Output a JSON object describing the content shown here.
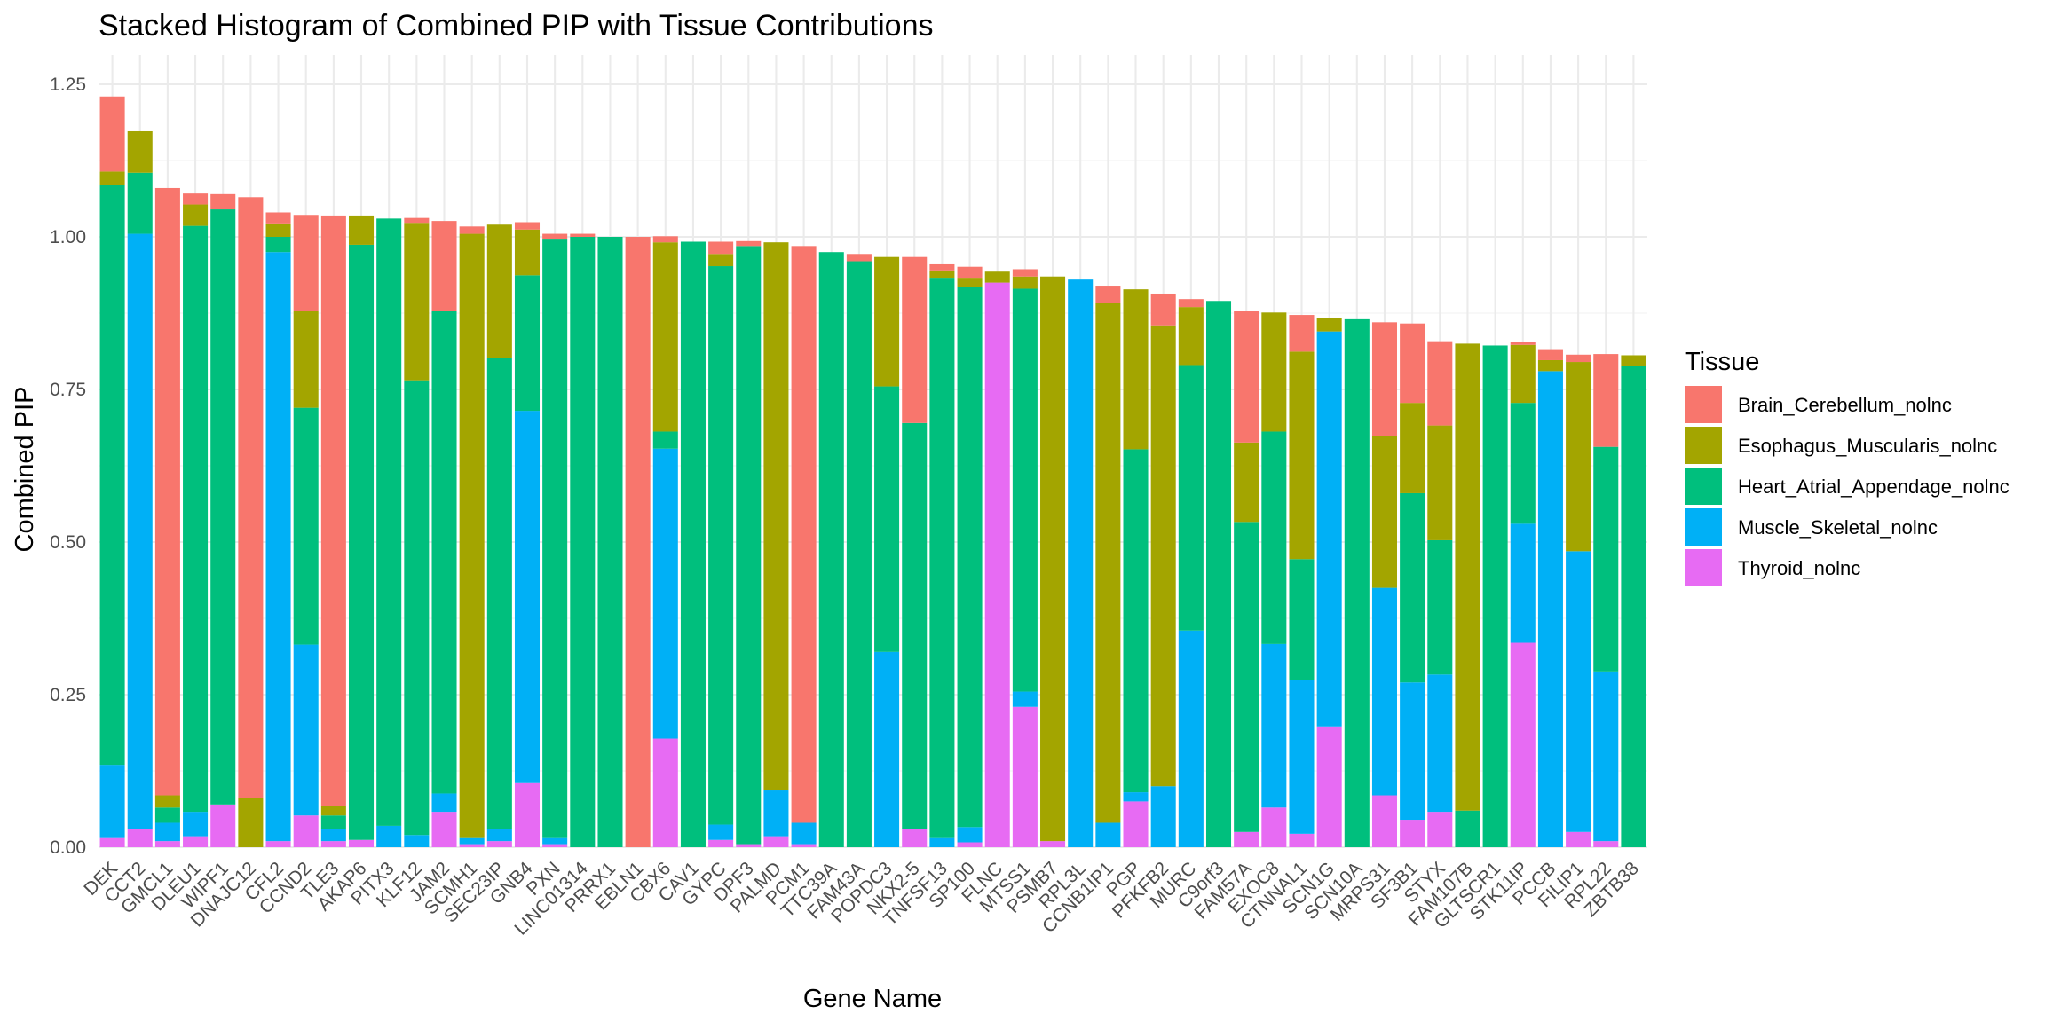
{
  "chart_data": {
    "type": "bar",
    "stacked": true,
    "title": "Stacked Histogram of Combined PIP with Tissue Contributions",
    "xlabel": "Gene Name",
    "ylabel": "Combined PIP",
    "ylim": [
      0,
      1.25
    ],
    "yticks": [
      "0.00",
      "0.25",
      "0.50",
      "0.75",
      "1.00",
      "1.25"
    ],
    "ytick_values": [
      0,
      0.25,
      0.5,
      0.75,
      1.0,
      1.25
    ],
    "legend_title": "Tissue",
    "legend_position": "right",
    "categories": [
      "DEK",
      "CCT2",
      "GMCL1",
      "DLEU1",
      "WIPF1",
      "DNAJC12",
      "CFL2",
      "CCND2",
      "TLE3",
      "AKAP6",
      "PITX3",
      "KLF12",
      "JAM2",
      "SCMH1",
      "SEC23IP",
      "GNB4",
      "PXN",
      "LINC01314",
      "PRRX1",
      "EBLN1",
      "CBX6",
      "CAV1",
      "GYPC",
      "DPF3",
      "PALMD",
      "PCM1",
      "TTC39A",
      "FAM43A",
      "POPDC3",
      "NKX2-5",
      "TNFSF13",
      "SP100",
      "FLNC",
      "MTSS1",
      "PSMB7",
      "RPL3L",
      "CCNB1IP1",
      "PGP",
      "PFKFB2",
      "MURC",
      "C9orf3",
      "FAM57A",
      "EXOC8",
      "CTNNAL1",
      "SCN1G",
      "SCN10A",
      "MRPS31",
      "SF3B1",
      "STYX",
      "FAM107B",
      "GLTSCR1",
      "STK11IP",
      "PCCB",
      "FILIP1",
      "RPL22",
      "ZBTB38"
    ],
    "series": [
      {
        "name": "Thyroid_nolnc",
        "color": "#E76BF3",
        "values": [
          0.015,
          0.03,
          0.01,
          0.018,
          0.07,
          0,
          0.01,
          0.052,
          0.01,
          0.012,
          0,
          0,
          0.058,
          0.005,
          0.01,
          0.105,
          0.005,
          0,
          0,
          0,
          0.178,
          0,
          0.012,
          0.005,
          0.018,
          0.005,
          0,
          0,
          0,
          0.03,
          0,
          0.008,
          0.925,
          0.23,
          0.01,
          0,
          0,
          0.075,
          0,
          0,
          0,
          0.025,
          0.065,
          0.022,
          0.198,
          0,
          0.085,
          0.045,
          0.058,
          0,
          0,
          0.335,
          0,
          0.025,
          0.01,
          0
        ]
      },
      {
        "name": "Muscle_Skeletal_nolnc",
        "color": "#00B0F6",
        "values": [
          0.12,
          0.975,
          0.03,
          0.04,
          0,
          0,
          0.965,
          0.28,
          0.02,
          0,
          0.035,
          0.02,
          0.03,
          0.01,
          0.02,
          0.61,
          0.01,
          0,
          0,
          0,
          0.475,
          0,
          0.025,
          0,
          0.075,
          0.035,
          0,
          0,
          0.32,
          0,
          0.015,
          0.025,
          0,
          0.025,
          0,
          0.93,
          0.04,
          0.015,
          0.1,
          0.355,
          0,
          0,
          0.268,
          0.252,
          0.647,
          0,
          0.34,
          0.225,
          0.225,
          0,
          0,
          0.195,
          0.78,
          0.46,
          0.278,
          0
        ]
      },
      {
        "name": "Heart_Atrial_Appendage_nolnc",
        "color": "#00BF7D",
        "values": [
          0.95,
          0.1,
          0.025,
          0.96,
          0.975,
          0,
          0.025,
          0.388,
          0.022,
          0.975,
          0.995,
          0.745,
          0.79,
          0,
          0.772,
          0.222,
          0.982,
          1.0,
          1.0,
          0,
          0.028,
          0.992,
          0.915,
          0.98,
          0,
          0,
          0.975,
          0.96,
          0.435,
          0.665,
          0.918,
          0.885,
          0,
          0.66,
          0,
          0,
          0,
          0.562,
          0,
          0.435,
          0.895,
          0.508,
          0.348,
          0.198,
          0,
          0.865,
          0,
          0.31,
          0.22,
          0.06,
          0.822,
          0.198,
          0,
          0,
          0.368,
          0.788
        ]
      },
      {
        "name": "Esophagus_Muscularis_nolnc",
        "color": "#A3A500",
        "values": [
          0.022,
          0.068,
          0.02,
          0.035,
          0,
          0.08,
          0.022,
          0.158,
          0.015,
          0.048,
          0,
          0.258,
          0,
          0.99,
          0.218,
          0.075,
          0,
          0,
          0,
          0,
          0.31,
          0,
          0.02,
          0,
          0.898,
          0,
          0,
          0,
          0.212,
          0,
          0.012,
          0.015,
          0.018,
          0.02,
          0.925,
          0,
          0.852,
          0.262,
          0.755,
          0.095,
          0,
          0.13,
          0.195,
          0.34,
          0.022,
          0,
          0.248,
          0.148,
          0.188,
          0.765,
          0,
          0.095,
          0.018,
          0.31,
          0,
          0.018
        ]
      },
      {
        "name": "Brain_Cerebellum_nolnc",
        "color": "#F8766D",
        "values": [
          0.123,
          0,
          0.995,
          0.018,
          0.025,
          0.985,
          0.018,
          0.158,
          0.968,
          0,
          0,
          0.008,
          0.148,
          0.012,
          0,
          0.012,
          0.008,
          0.005,
          0,
          1.0,
          0.01,
          0,
          0.02,
          0.008,
          0,
          0.945,
          0,
          0.012,
          0,
          0.272,
          0.01,
          0.018,
          0,
          0.012,
          0,
          0,
          0.028,
          0,
          0.052,
          0.013,
          0,
          0.215,
          0,
          0.06,
          0,
          0,
          0.187,
          0.13,
          0.138,
          0,
          0,
          0.005,
          0.018,
          0.012,
          0.152,
          0
        ]
      }
    ]
  }
}
